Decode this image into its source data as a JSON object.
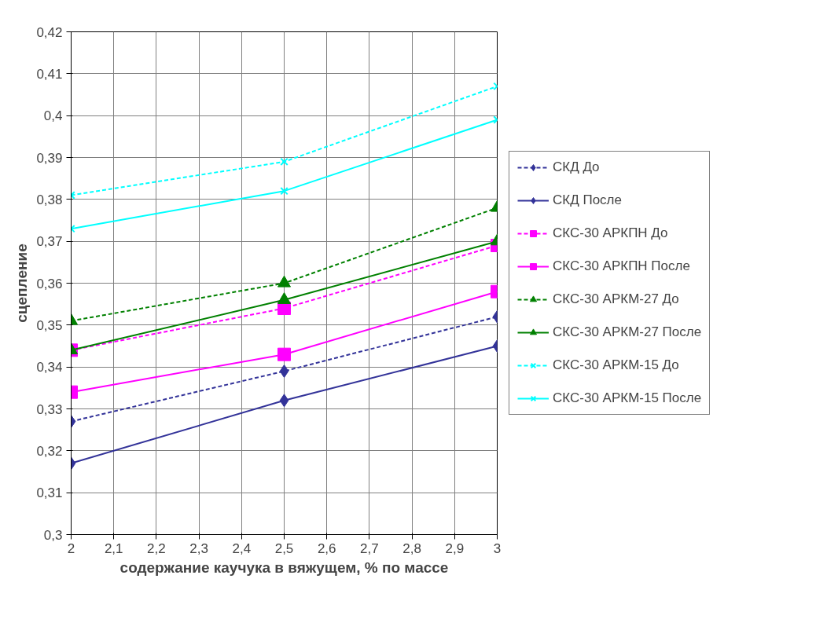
{
  "chart_data": {
    "type": "line",
    "xlabel": "содержание каучука в вяжущем, % по массе",
    "ylabel": "сцепление",
    "x": [
      2,
      2.5,
      3
    ],
    "series": [
      {
        "name": "СКД До",
        "color": "#333399",
        "marker": "diamond",
        "line_style": "dashed",
        "values": [
          0.327,
          0.339,
          0.352
        ]
      },
      {
        "name": "СКД После",
        "color": "#333399",
        "marker": "diamond",
        "line_style": "solid",
        "values": [
          0.317,
          0.332,
          0.345
        ]
      },
      {
        "name": "СКС-30 АРКПН До",
        "color": "#ff00ff",
        "marker": "square",
        "line_style": "dashed",
        "values": [
          0.344,
          0.354,
          0.369
        ]
      },
      {
        "name": "СКС-30 АРКПН После",
        "color": "#ff00ff",
        "marker": "square",
        "line_style": "solid",
        "values": [
          0.334,
          0.343,
          0.358
        ]
      },
      {
        "name": "СКС-30 АРКМ-27 До",
        "color": "#008000",
        "marker": "triangle",
        "line_style": "dashed",
        "values": [
          0.351,
          0.36,
          0.378
        ]
      },
      {
        "name": "СКС-30 АРКМ-27 После",
        "color": "#008000",
        "marker": "triangle",
        "line_style": "solid",
        "values": [
          0.344,
          0.356,
          0.37
        ]
      },
      {
        "name": "СКС-30 АРКМ-15 До",
        "color": "#00ffff",
        "marker": "cross",
        "line_style": "dashed",
        "values": [
          0.381,
          0.389,
          0.407
        ]
      },
      {
        "name": "СКС-30 АРКМ-15 После",
        "color": "#00ffff",
        "marker": "cross",
        "line_style": "solid",
        "values": [
          0.373,
          0.382,
          0.399
        ]
      }
    ],
    "xlim": [
      2,
      3
    ],
    "xticks": [
      {
        "value": 2,
        "label": "2"
      },
      {
        "value": 2.1,
        "label": "2,1"
      },
      {
        "value": 2.2,
        "label": "2,2"
      },
      {
        "value": 2.3,
        "label": "2,3"
      },
      {
        "value": 2.4,
        "label": "2,4"
      },
      {
        "value": 2.5,
        "label": "2,5"
      },
      {
        "value": 2.6,
        "label": "2,6"
      },
      {
        "value": 2.7,
        "label": "2,7"
      },
      {
        "value": 2.8,
        "label": "2,8"
      },
      {
        "value": 2.9,
        "label": "2,9"
      },
      {
        "value": 3,
        "label": "3"
      }
    ],
    "ylim": [
      0.3,
      0.42
    ],
    "yticks": [
      {
        "value": 0.3,
        "label": "0,3"
      },
      {
        "value": 0.31,
        "label": "0,31"
      },
      {
        "value": 0.32,
        "label": "0,32"
      },
      {
        "value": 0.33,
        "label": "0,33"
      },
      {
        "value": 0.34,
        "label": "0,34"
      },
      {
        "value": 0.35,
        "label": "0,35"
      },
      {
        "value": 0.36,
        "label": "0,36"
      },
      {
        "value": 0.37,
        "label": "0,37"
      },
      {
        "value": 0.38,
        "label": "0,38"
      },
      {
        "value": 0.39,
        "label": "0,39"
      },
      {
        "value": 0.4,
        "label": "0,4"
      },
      {
        "value": 0.41,
        "label": "0,41"
      },
      {
        "value": 0.42,
        "label": "0,42"
      }
    ],
    "grid": true,
    "legend": "right"
  }
}
